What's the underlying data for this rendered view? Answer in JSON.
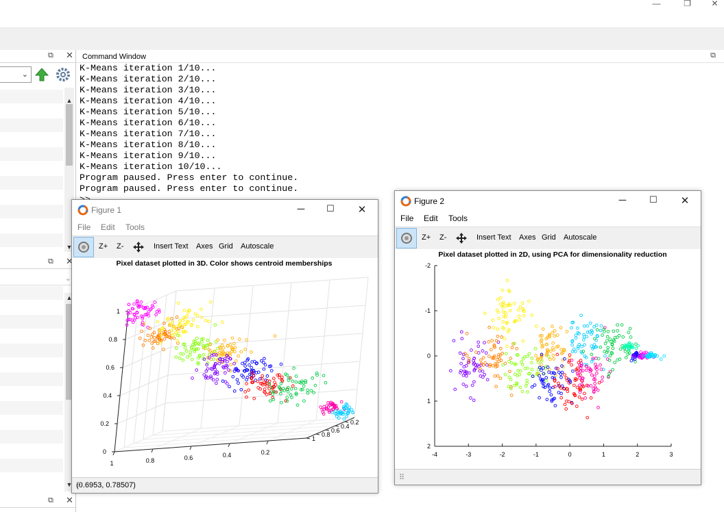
{
  "main_window": {
    "controls": {
      "minimize": "—",
      "restore": "❐",
      "close": "✕"
    }
  },
  "left_panel": {
    "undock_glyph": "⧉",
    "close_glyph": "✕",
    "combo_chevron": "⌄",
    "up_arrow_color": "#3fae3f",
    "gear_color": "#607d9b"
  },
  "command_window": {
    "title": "Command Window",
    "lines": [
      "K-Means iteration 1/10...",
      "K-Means iteration 2/10...",
      "K-Means iteration 3/10...",
      "K-Means iteration 4/10...",
      "K-Means iteration 5/10...",
      "K-Means iteration 6/10...",
      "K-Means iteration 7/10...",
      "K-Means iteration 8/10...",
      "K-Means iteration 9/10...",
      "K-Means iteration 10/10...",
      "Program paused. Press enter to continue.",
      "Program paused. Press enter to continue.",
      ">> "
    ]
  },
  "figure1": {
    "title": "Figure 1",
    "menu": {
      "file": "File",
      "edit": "Edit",
      "tools": "Tools"
    },
    "toolbar": {
      "zoom_in": "Z+",
      "zoom_out": "Z-",
      "insert_text": "Insert Text",
      "axes": "Axes",
      "grid": "Grid",
      "autoscale": "Autoscale"
    },
    "status": "(0.6953, 0.78507)"
  },
  "figure2": {
    "title": "Figure 2",
    "menu": {
      "file": "File",
      "edit": "Edit",
      "tools": "Tools"
    },
    "toolbar": {
      "zoom_in": "Z+",
      "zoom_out": "Z-",
      "insert_text": "Insert Text",
      "axes": "Axes",
      "grid": "Grid",
      "autoscale": "Autoscale"
    }
  },
  "cluster_colors": [
    "#ff0000",
    "#ff8000",
    "#ffee00",
    "#80ff00",
    "#00cc44",
    "#00ccff",
    "#0000ff",
    "#8000ff",
    "#ff00ff",
    "#ff0080"
  ],
  "chart_data": [
    {
      "type": "scatter",
      "title": "Pixel dataset plotted in 3D. Color shows centroid memberships",
      "projection": "3d",
      "axes": {
        "x_ticks": [
          "1",
          "0.8",
          "0.6",
          "0.4",
          "0.2"
        ],
        "y_ticks": [
          "1",
          "0.8",
          "0.6",
          "0.4",
          "0.2"
        ],
        "z_ticks": [
          "0",
          "0.2",
          "0.4",
          "0.6",
          "0.8",
          "1"
        ],
        "xlim": [
          0,
          1
        ],
        "ylim": [
          0,
          1
        ],
        "zlim": [
          0,
          1
        ]
      },
      "grid": true,
      "clusters": [
        {
          "color": "#ff00ff",
          "centroid": [
            0.95,
            0.95,
            0.98
          ]
        },
        {
          "color": "#ff8000",
          "centroid": [
            0.85,
            0.82,
            0.8
          ]
        },
        {
          "color": "#ffee00",
          "centroid": [
            0.75,
            0.85,
            0.88
          ]
        },
        {
          "color": "#80ff00",
          "centroid": [
            0.7,
            0.68,
            0.65
          ]
        },
        {
          "color": "#ffb000",
          "centroid": [
            0.55,
            0.65,
            0.62
          ]
        },
        {
          "color": "#8000ff",
          "centroid": [
            0.6,
            0.58,
            0.5
          ]
        },
        {
          "color": "#0000ff",
          "centroid": [
            0.45,
            0.5,
            0.45
          ]
        },
        {
          "color": "#ff0000",
          "centroid": [
            0.4,
            0.38,
            0.32
          ]
        },
        {
          "color": "#00cc44",
          "centroid": [
            0.25,
            0.3,
            0.28
          ]
        },
        {
          "color": "#ff00aa",
          "centroid": [
            0.1,
            0.12,
            0.1
          ]
        },
        {
          "color": "#00ccff",
          "centroid": [
            0.05,
            0.05,
            0.05
          ]
        }
      ]
    },
    {
      "type": "scatter",
      "title": "Pixel dataset plotted in 2D, using PCA for dimensionality reduction",
      "xlim": [
        -4,
        3
      ],
      "ylim": [
        -2,
        2
      ],
      "y_reversed": true,
      "x_ticks": [
        "-4",
        "-3",
        "-2",
        "-1",
        "0",
        "1",
        "2",
        "3"
      ],
      "y_ticks": [
        "-2",
        "-1",
        "0",
        "1",
        "2"
      ],
      "grid": false,
      "clusters": [
        {
          "color": "#8000ff",
          "centroid": [
            -2.9,
            0.2
          ]
        },
        {
          "color": "#ff8000",
          "centroid": [
            -2.3,
            0.0
          ]
        },
        {
          "color": "#ffee00",
          "centroid": [
            -1.8,
            -1.0
          ]
        },
        {
          "color": "#80ff00",
          "centroid": [
            -1.3,
            0.35
          ]
        },
        {
          "color": "#ffb000",
          "centroid": [
            -0.5,
            -0.2
          ]
        },
        {
          "color": "#0000ff",
          "centroid": [
            -0.6,
            0.6
          ]
        },
        {
          "color": "#ff0000",
          "centroid": [
            0.1,
            0.6
          ]
        },
        {
          "color": "#00ccff",
          "centroid": [
            0.5,
            -0.4
          ]
        },
        {
          "color": "#ff00aa",
          "centroid": [
            0.6,
            0.4
          ]
        },
        {
          "color": "#00cc44",
          "centroid": [
            1.3,
            -0.2
          ]
        },
        {
          "color": "#00ffaa",
          "centroid": [
            1.8,
            -0.2
          ]
        },
        {
          "color": "#1000ff",
          "centroid": [
            2.0,
            0.0
          ]
        },
        {
          "color": "#ff00ff",
          "centroid": [
            2.2,
            0.0
          ]
        },
        {
          "color": "#00e0ff",
          "centroid": [
            2.4,
            0.0
          ]
        }
      ]
    }
  ]
}
